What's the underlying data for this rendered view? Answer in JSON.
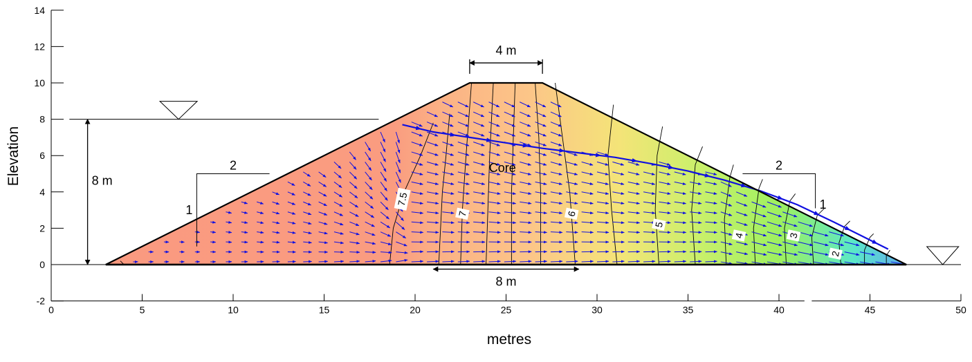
{
  "axes": {
    "x_title": "metres",
    "y_title": "Elevation",
    "x_range": [
      0,
      50
    ],
    "y_range": [
      -2,
      14
    ],
    "x_ticks": [
      "0",
      "5",
      "10",
      "15",
      "20",
      "25",
      "30",
      "35",
      "40",
      "45",
      "50"
    ],
    "y_ticks": [
      "-2",
      "0",
      "2",
      "4",
      "6",
      "8",
      "10",
      "12",
      "14"
    ]
  },
  "dam": {
    "toe_left": [
      3,
      0
    ],
    "crest_left": [
      23,
      10
    ],
    "crest_right": [
      27,
      10
    ],
    "toe_right": [
      47,
      0
    ],
    "core_base": [
      21,
      29
    ],
    "core_top": [
      23.6,
      26.4
    ]
  },
  "water": {
    "upstream_level": 8,
    "upstream_extent": [
      1,
      18
    ],
    "downstream_level": 0
  },
  "annotations": {
    "crest_width": "4 m",
    "base_width": "8 m",
    "water_depth": "8 m",
    "core": "Core",
    "slope_run": "2",
    "slope_rise": "1"
  },
  "contours": [
    {
      "label": "7.5",
      "at": [
        19.3,
        3.6
      ]
    },
    {
      "label": "7",
      "at": [
        22.6,
        2.8
      ]
    },
    {
      "label": "6",
      "at": [
        28.6,
        2.8
      ]
    },
    {
      "label": "5",
      "at": [
        33.4,
        2.2
      ]
    },
    {
      "label": "4",
      "at": [
        37.8,
        1.6
      ]
    },
    {
      "label": "3",
      "at": [
        40.8,
        1.6
      ]
    },
    {
      "label": "2",
      "at": [
        43.1,
        0.6
      ]
    }
  ],
  "colors": {
    "upstream_fill": "#fa9a80",
    "core_fill": "#fcc688",
    "mid_fill": "#eef070",
    "downstream_fill": "#9df060",
    "toe_fill": "#5ae8d0",
    "vector": "#1010e0",
    "outline": "#000000"
  }
}
